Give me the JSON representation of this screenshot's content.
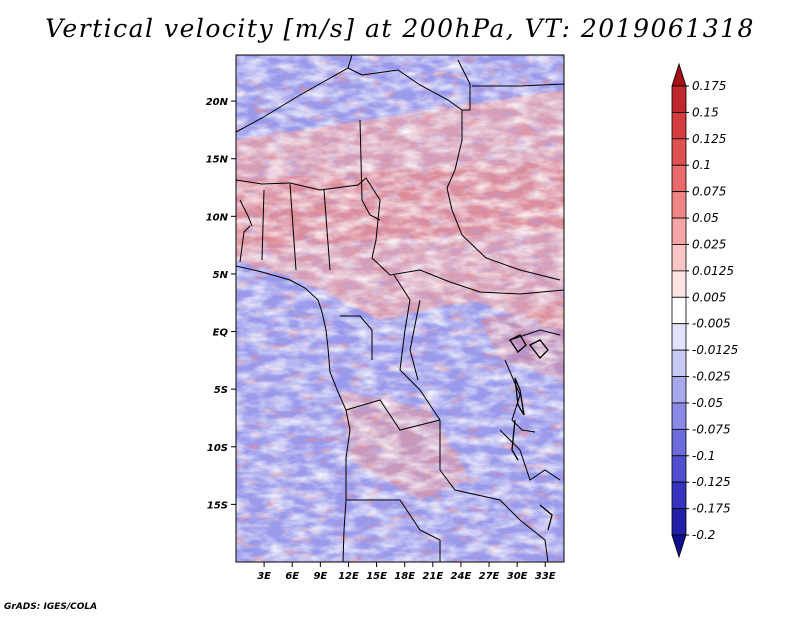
{
  "title": "Vertical velocity [m/s] at 200hPa, VT: 2019061318",
  "footer": "GrADS: IGES/COLA",
  "map": {
    "lon_range": [
      0,
      35
    ],
    "lat_range": [
      -20,
      24
    ],
    "lon_ticks": [
      "3E",
      "6E",
      "9E",
      "12E",
      "15E",
      "18E",
      "21E",
      "24E",
      "27E",
      "30E",
      "33E"
    ],
    "lat_ticks": [
      "20N",
      "15N",
      "10N",
      "5N",
      "EQ",
      "5S",
      "10S",
      "15S"
    ]
  },
  "colorbar": {
    "labels": [
      "0.175",
      "0.15",
      "0.125",
      "0.1",
      "0.075",
      "0.05",
      "0.025",
      "0.0125",
      "0.005",
      "-0.005",
      "-0.0125",
      "-0.025",
      "-0.05",
      "-0.075",
      "-0.1",
      "-0.125",
      "-0.175",
      "-0.2"
    ],
    "colors": [
      "#a50f15",
      "#c0282d",
      "#d33d3d",
      "#e05252",
      "#e86a6a",
      "#f08585",
      "#f5a5a5",
      "#f9c6c6",
      "#fde5e5",
      "#ffffff",
      "#e3e3fb",
      "#c8c8f5",
      "#a8a8ee",
      "#8a8ae6",
      "#6b6bdb",
      "#4f4fcf",
      "#3535bf",
      "#2020a8",
      "#10108e"
    ]
  }
}
